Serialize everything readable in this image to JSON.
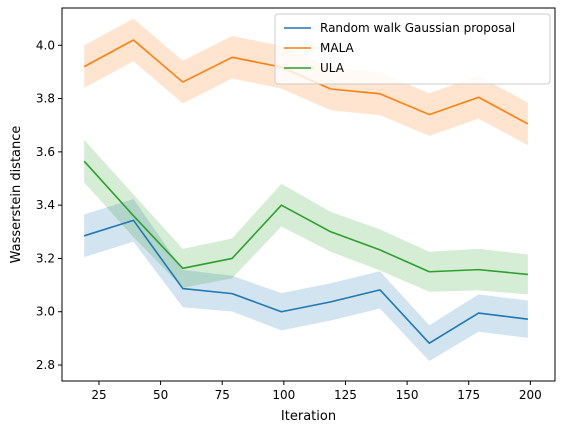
{
  "chart_data": {
    "type": "line",
    "xlabel": "Iteration",
    "ylabel": "Wasserstein distance",
    "xlim": [
      10,
      210
    ],
    "ylim": [
      2.74,
      4.14
    ],
    "xticks": [
      25,
      50,
      75,
      100,
      125,
      150,
      175,
      200
    ],
    "yticks": [
      2.8,
      3.0,
      3.2,
      3.4,
      3.6,
      3.8,
      4.0
    ],
    "x": [
      19,
      39,
      59,
      79,
      99,
      119,
      139,
      159,
      179,
      199
    ],
    "legend_position": "top-right",
    "grid": false,
    "series": [
      {
        "name": "Random walk Gaussian proposal",
        "color": "#1f77b4",
        "values": [
          3.285,
          3.343,
          3.087,
          3.068,
          3.0,
          3.037,
          3.082,
          2.882,
          2.995,
          2.972
        ],
        "lower": [
          3.205,
          3.263,
          3.017,
          3.001,
          2.93,
          2.967,
          3.012,
          2.815,
          2.925,
          2.902
        ],
        "upper": [
          3.365,
          3.423,
          3.157,
          3.135,
          3.07,
          3.107,
          3.152,
          2.949,
          3.065,
          3.042
        ]
      },
      {
        "name": "MALA",
        "color": "#ff7f0e",
        "values": [
          3.92,
          4.02,
          3.862,
          3.955,
          3.918,
          3.836,
          3.818,
          3.74,
          3.805,
          3.705
        ],
        "lower": [
          3.84,
          3.94,
          3.782,
          3.875,
          3.838,
          3.756,
          3.738,
          3.66,
          3.725,
          3.625
        ],
        "upper": [
          4.0,
          4.1,
          3.942,
          4.035,
          3.998,
          3.916,
          3.898,
          3.82,
          3.885,
          3.785
        ]
      },
      {
        "name": "ULA",
        "color": "#2ca02c",
        "values": [
          3.565,
          3.36,
          3.163,
          3.2,
          3.4,
          3.3,
          3.232,
          3.15,
          3.158,
          3.14
        ],
        "lower": [
          3.485,
          3.28,
          3.09,
          3.125,
          3.32,
          3.225,
          3.155,
          3.075,
          3.08,
          3.065
        ],
        "upper": [
          3.645,
          3.44,
          3.236,
          3.275,
          3.48,
          3.375,
          3.309,
          3.225,
          3.236,
          3.215
        ]
      }
    ]
  }
}
